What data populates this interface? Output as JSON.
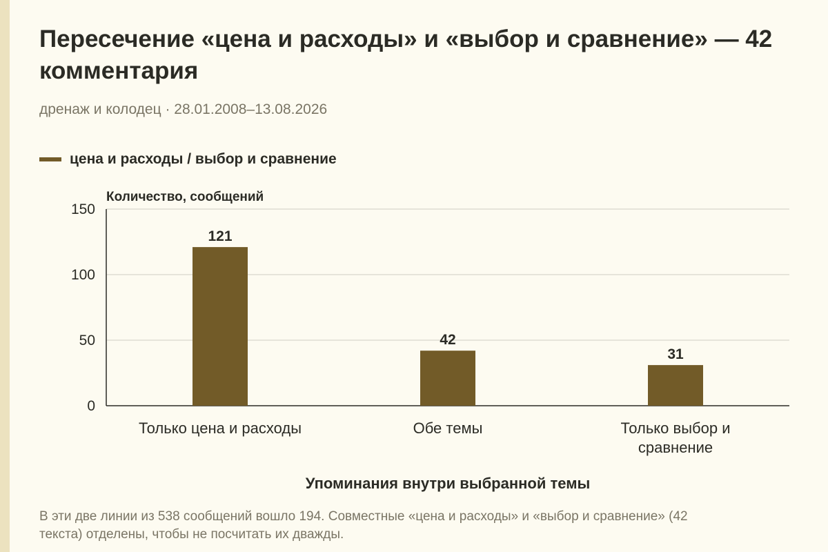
{
  "title": "Пересечение «цена и расходы» и «выбор и сравнение» — 42 комментария",
  "subtitle": "дренаж и колодец · 28.01.2008–13.08.2026",
  "footnote": "В эти две линии из 538 сообщений вошло 194. Совместные «цена и расходы» и «выбор и сравнение» (42 текста) отделены, чтобы не посчитать их дважды.",
  "colors": {
    "bar": "#725b28",
    "grid": "#d9d6cc",
    "axis": "#2b2b25"
  },
  "chart_data": {
    "type": "bar",
    "categories": [
      [
        "Только цена и расходы"
      ],
      [
        "Обе темы"
      ],
      [
        "Только выбор и",
        "сравнение"
      ]
    ],
    "series": [
      {
        "name": "цена и расходы / выбор и сравнение",
        "values": [
          121,
          42,
          31
        ]
      }
    ],
    "data_labels": [
      "121",
      "42",
      "31"
    ],
    "ylabel": "Количество, сообщений",
    "xlabel": "Упоминания внутри выбранной темы",
    "ylim": [
      0,
      150
    ],
    "yticks": [
      0,
      50,
      100,
      150
    ],
    "grid": true,
    "legend_position": "top-left"
  }
}
